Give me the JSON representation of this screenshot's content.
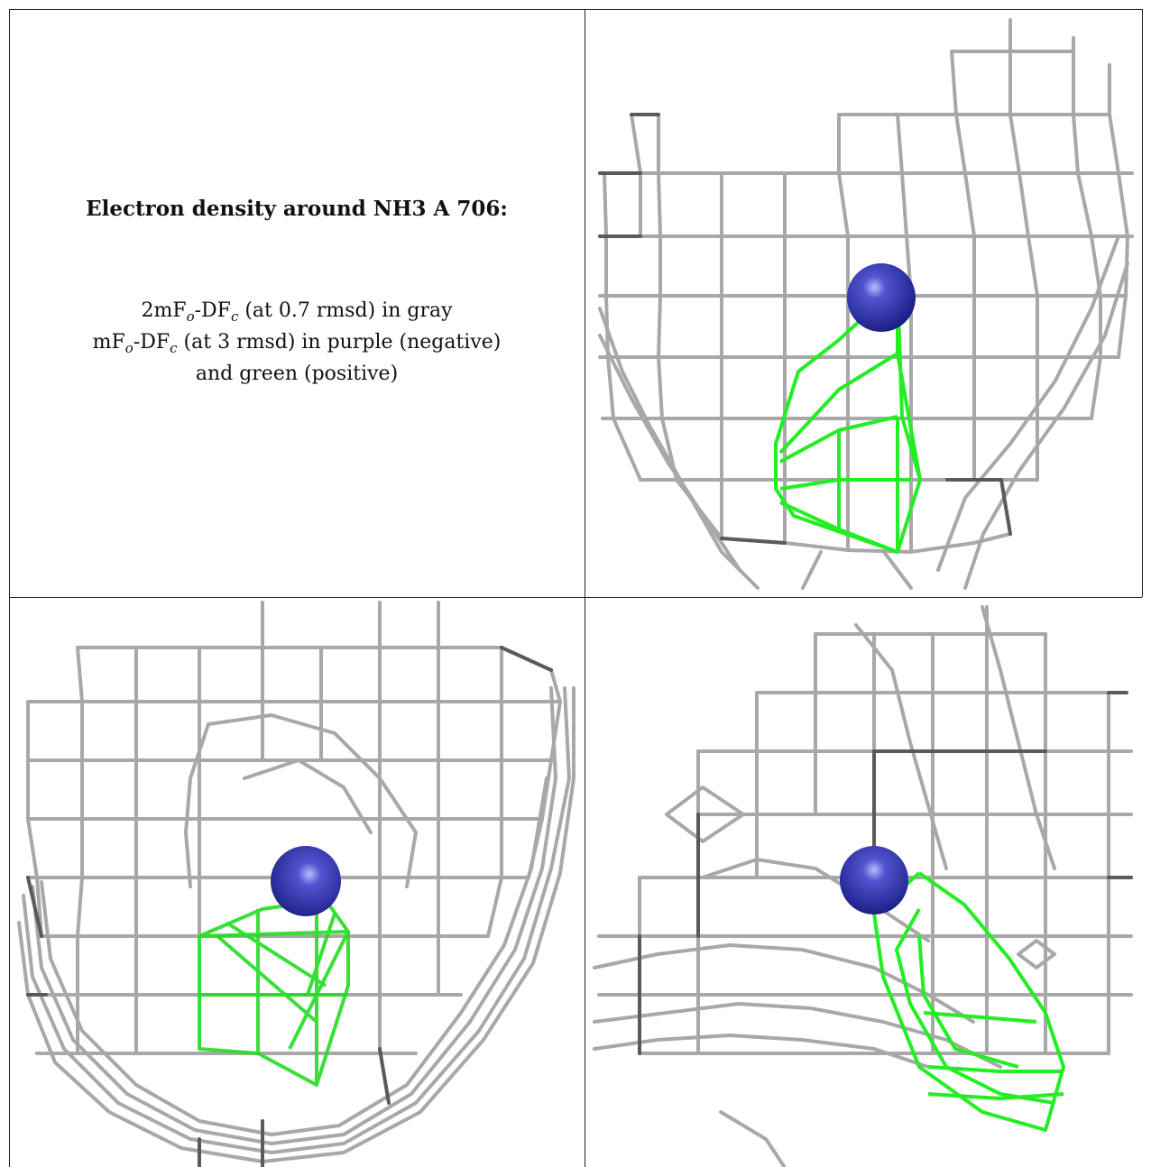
{
  "caption": {
    "title": "Electron density around NH3 A 706:",
    "line1_prefix": "2mF",
    "line1_sub_o": "o",
    "line1_mid": "-DF",
    "line1_sub_c": "c",
    "line1_suffix": " (at 0.7 rmsd) in gray",
    "line2_prefix": "mF",
    "line2_sub_o": "o",
    "line2_mid": "-DF",
    "line2_sub_c": "c",
    "line2_suffix": " (at 3 rmsd) in purple (negative)",
    "line3": "and green (positive)"
  },
  "colors": {
    "gray_mesh": "#9a9a9a",
    "dark_mesh": "#555555",
    "green_mesh": "#22ee22",
    "atom": "#2a2ea8",
    "atom_highlight": "#b8bcff",
    "border": "#222222"
  },
  "panels": [
    {
      "name": "view-1"
    },
    {
      "name": "view-2"
    },
    {
      "name": "view-3"
    }
  ]
}
